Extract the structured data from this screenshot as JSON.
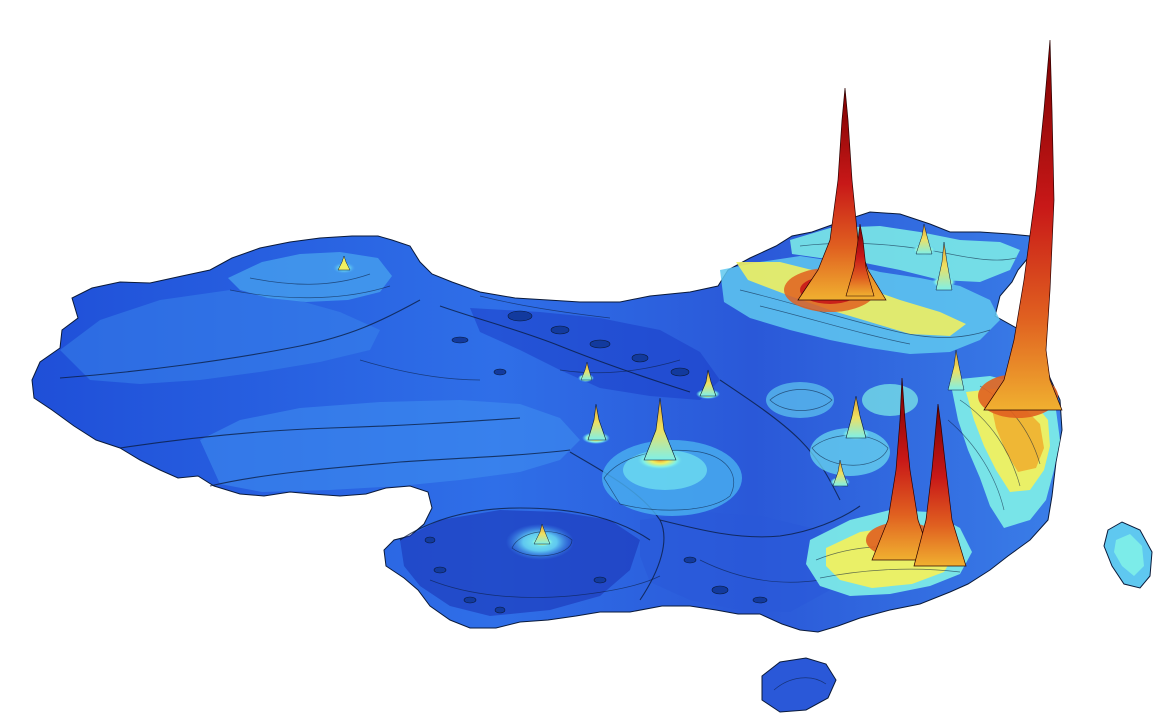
{
  "figure": {
    "kind": "3d-surface-map",
    "subject": "map-of-china",
    "colormap": [
      "#1430c8",
      "#2a5fe0",
      "#3f8ff0",
      "#5fc8f0",
      "#7ff0e8",
      "#f0f060",
      "#f0b030",
      "#e06020",
      "#c81818",
      "#8a0000"
    ],
    "background": "#ffffff"
  }
}
